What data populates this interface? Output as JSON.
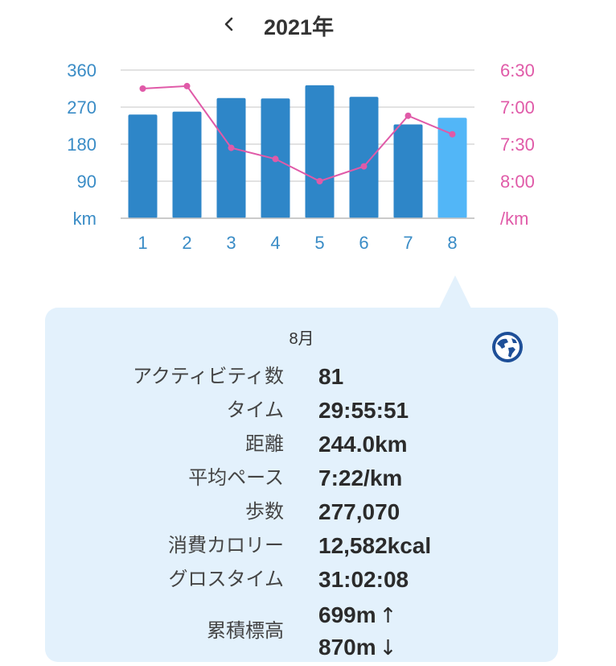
{
  "header": {
    "title": "2021年",
    "back_icon": "chevron-left-icon"
  },
  "colors": {
    "bar": "#2e86c8",
    "bar_selected": "#52b6f7",
    "pace_line": "#e05aa8",
    "left_axis": "#3a8cc6",
    "right_axis": "#e05aa8",
    "panel_bg": "#e3f1fc"
  },
  "chart_data": {
    "type": "bar",
    "categories": [
      "1",
      "2",
      "3",
      "4",
      "5",
      "6",
      "7",
      "8"
    ],
    "series": [
      {
        "unit": "km",
        "axis": "left",
        "values": [
          252,
          259,
          292,
          291,
          323,
          295,
          228,
          244
        ]
      },
      {
        "type": "line",
        "unit": "/km",
        "axis": "right",
        "values": [
          "6:45",
          "6:43",
          "7:33",
          "7:42",
          "8:00",
          "7:48",
          "7:07",
          "7:22"
        ]
      }
    ],
    "selected_index": 7,
    "left_axis": {
      "ticks": [
        "360",
        "270",
        "180",
        "90"
      ],
      "ylim": [
        0,
        360
      ],
      "unit": "km"
    },
    "right_axis": {
      "ticks": [
        "6:30",
        "7:00",
        "7:30",
        "8:00"
      ],
      "ylim": [
        "6:30",
        "9:00"
      ],
      "unit": "/km"
    },
    "grid": true,
    "legend": "none"
  },
  "detail": {
    "month": "8月",
    "globe_icon": "globe-icon",
    "rows": [
      {
        "label": "アクティビティ数",
        "value": "81"
      },
      {
        "label": "タイム",
        "value": "29:55:51"
      },
      {
        "label": "距離",
        "value": "244.0km"
      },
      {
        "label": "平均ペース",
        "value": "7:22/km"
      },
      {
        "label": "歩数",
        "value": "277,070"
      },
      {
        "label": "消費カロリー",
        "value": "12,582kcal"
      },
      {
        "label": "グロスタイム",
        "value": "31:02:08"
      }
    ],
    "elevation": {
      "label": "累積標高",
      "up": "699m",
      "up_icon": "arrow-up-icon",
      "down": "870m",
      "down_icon": "arrow-down-icon"
    }
  }
}
